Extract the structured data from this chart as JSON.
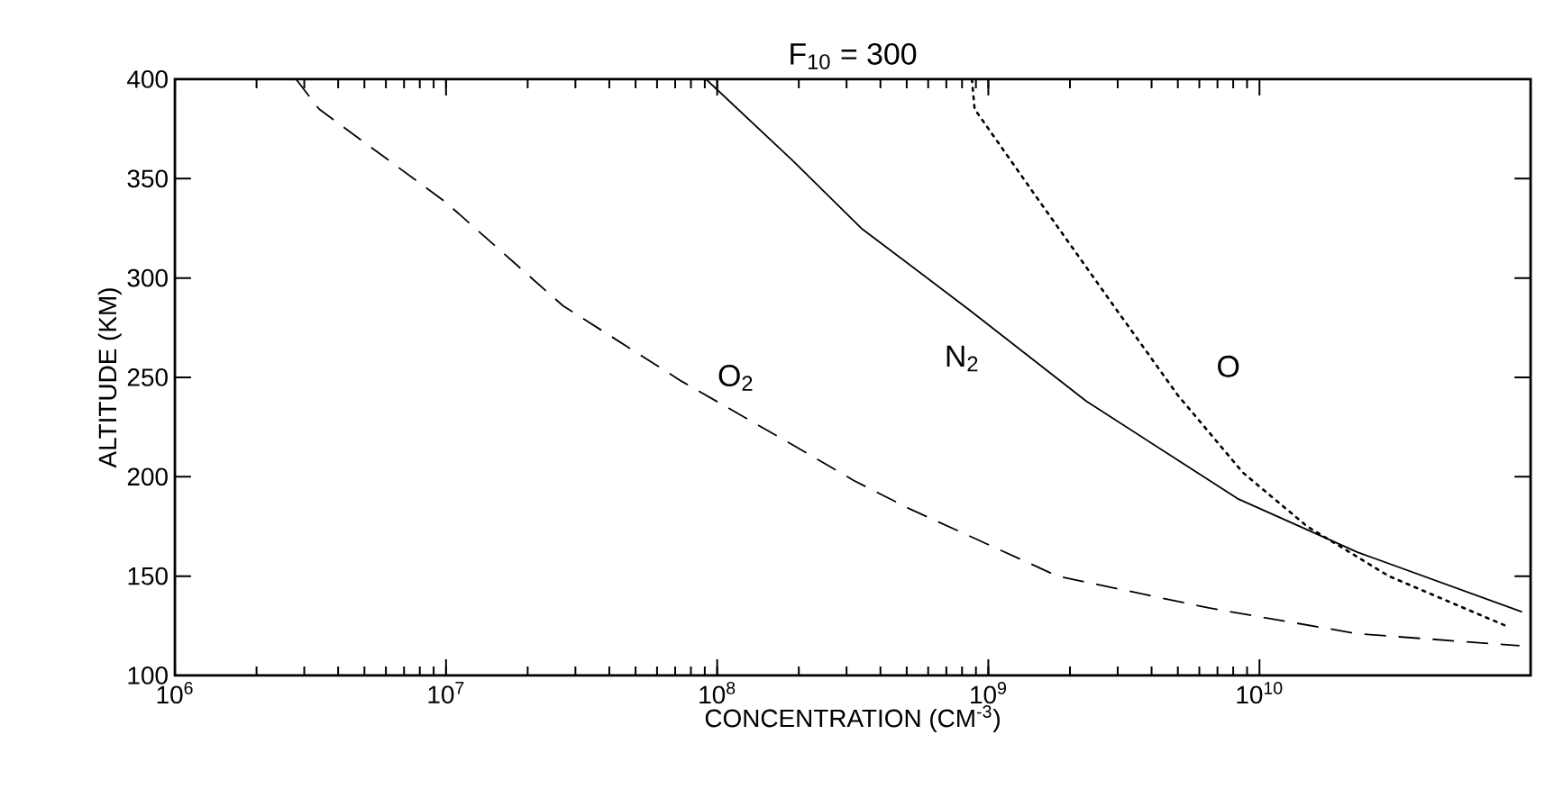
{
  "chart_data": {
    "type": "line",
    "title": "F$_{10}$ = 300",
    "xlabel": "CONCENTRATION (CM$^{-3}$)",
    "ylabel": "ALTITUDE (KM)",
    "log": "x",
    "grid": false,
    "legend": false,
    "marker": "none",
    "xlim": [
      1000000,
      100000000000
    ],
    "ylim": [
      100,
      400
    ],
    "xticks": [
      {
        "value": 1000000,
        "label": "10$^{6}$"
      },
      {
        "value": 10000000,
        "label": "10$^{7}$"
      },
      {
        "value": 100000000,
        "label": "10$^{8}$"
      },
      {
        "value": 1000000000,
        "label": "10$^{9}$"
      },
      {
        "value": 10000000000,
        "label": "10$^{10}$"
      }
    ],
    "yticks": [
      100,
      150,
      200,
      250,
      300,
      350,
      400
    ],
    "series": [
      {
        "name": "O$_{2}$",
        "color": "#000000",
        "line_style": "dashed",
        "x": [
          2800000,
          3400000,
          10000000,
          27000000,
          74000000,
          190000000,
          320000000,
          510000000,
          1800000000,
          6500000000,
          23000000000,
          91000000000
        ],
        "values": [
          400,
          385,
          338,
          286,
          248,
          216,
          198,
          184,
          150,
          134,
          121,
          115
        ]
      },
      {
        "name": "N$_{2}$",
        "color": "#000000",
        "line_style": "solid",
        "x": [
          91000000,
          190000000,
          340000000,
          850000000,
          2300000000,
          8300000000,
          23000000000,
          93000000000
        ],
        "values": [
          400,
          359,
          325,
          284,
          238,
          189,
          162,
          132
        ]
      },
      {
        "name": "O",
        "color": "#000000",
        "line_style": "dotted",
        "x": [
          870000000,
          890000000,
          1500000000,
          2900000000,
          5000000000,
          8700000000,
          15000000000,
          30000000000,
          81000000000
        ],
        "values": [
          400,
          385,
          341,
          286,
          241,
          202,
          175,
          150,
          125
        ]
      }
    ]
  }
}
